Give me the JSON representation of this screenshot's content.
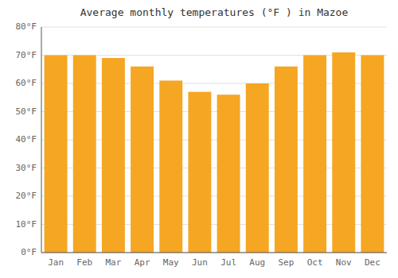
{
  "chart_data": {
    "type": "bar",
    "title": "Average monthly temperatures (°F ) in Mazoe",
    "categories": [
      "Jan",
      "Feb",
      "Mar",
      "Apr",
      "May",
      "Jun",
      "Jul",
      "Aug",
      "Sep",
      "Oct",
      "Nov",
      "Dec"
    ],
    "values": [
      70,
      70,
      69,
      66,
      61,
      57,
      56,
      60,
      66,
      70,
      71,
      70
    ],
    "color": "#F5A623",
    "ylim": [
      0,
      80
    ],
    "yticks": [
      {
        "value": 0,
        "label": "0°F"
      },
      {
        "value": 10,
        "label": "10°F"
      },
      {
        "value": 20,
        "label": "20°F"
      },
      {
        "value": 30,
        "label": "30°F"
      },
      {
        "value": 40,
        "label": "40°F"
      },
      {
        "value": 50,
        "label": "50°F"
      },
      {
        "value": 60,
        "label": "60°F"
      },
      {
        "value": 70,
        "label": "70°F"
      },
      {
        "value": 80,
        "label": "80°F"
      }
    ],
    "grid": true
  }
}
